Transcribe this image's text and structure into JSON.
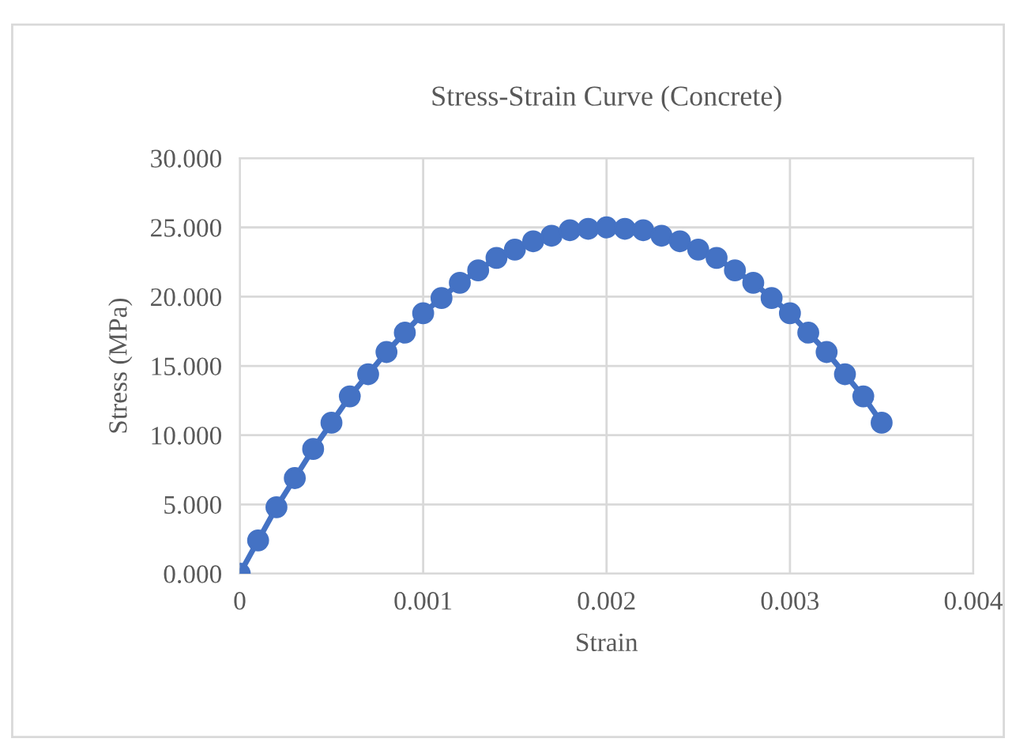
{
  "chart_data": {
    "type": "line",
    "title": "Stress-Strain Curve (Concrete)",
    "xlabel": "Strain",
    "ylabel": "Stress (MPa)",
    "x": [
      0,
      0.0001,
      0.0002,
      0.0003,
      0.0004,
      0.0005,
      0.0006,
      0.0007,
      0.0008,
      0.0009,
      0.001,
      0.0011,
      0.0012,
      0.0013,
      0.0014,
      0.0015,
      0.0016,
      0.0017,
      0.0018,
      0.0019,
      0.002,
      0.0021,
      0.0022,
      0.0023,
      0.0024,
      0.0025,
      0.0026,
      0.0027,
      0.0028,
      0.0029,
      0.003,
      0.0031,
      0.0032,
      0.0033,
      0.0034,
      0.0035
    ],
    "series": [
      {
        "color": "#4472c4",
        "values": [
          0,
          2.4,
          4.8,
          6.9,
          9.0,
          10.9,
          12.8,
          14.4,
          16.0,
          17.4,
          18.8,
          19.9,
          21.0,
          21.9,
          22.8,
          23.4,
          24.0,
          24.4,
          24.8,
          24.9,
          25.0,
          24.9,
          24.8,
          24.4,
          24.0,
          23.4,
          22.8,
          21.9,
          21.0,
          19.9,
          18.8,
          17.4,
          16.0,
          14.4,
          12.8,
          10.9
        ]
      }
    ],
    "line_style": "solid",
    "marker": "circle",
    "grid": true,
    "xlim": [
      0,
      0.004
    ],
    "xticks": [
      0,
      0.001,
      0.002,
      0.003,
      0.004
    ],
    "ylim": [
      0,
      30
    ],
    "yticks": [
      {
        "value": 0,
        "label": "0.000"
      },
      {
        "value": 5,
        "label": "5.000"
      },
      {
        "value": 10,
        "label": "10.000"
      },
      {
        "value": 15,
        "label": "15.000"
      },
      {
        "value": 20,
        "label": "20.000"
      },
      {
        "value": 25,
        "label": "25.000"
      },
      {
        "value": 30,
        "label": "30.000"
      }
    ]
  }
}
